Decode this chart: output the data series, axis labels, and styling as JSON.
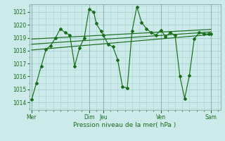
{
  "xlabel": "Pression niveau de la mer( hPa )",
  "bg_color": "#cceaea",
  "grid_color": "#aad4d4",
  "line_color": "#1a6e1a",
  "yticks": [
    1014,
    1015,
    1016,
    1017,
    1018,
    1019,
    1020,
    1021
  ],
  "ylim_low": 1013.4,
  "ylim_high": 1021.6,
  "xlim_low": -4,
  "xlim_high": 316,
  "day_positions": [
    0,
    96,
    120,
    216,
    300
  ],
  "day_names": [
    "Mer",
    "Dim",
    "Jeu",
    "Ven",
    "Sam"
  ],
  "trend_lines": [
    {
      "x": [
        0,
        300
      ],
      "y": [
        1018.05,
        1019.25
      ]
    },
    {
      "x": [
        0,
        300
      ],
      "y": [
        1018.5,
        1019.45
      ]
    },
    {
      "x": [
        0,
        300
      ],
      "y": [
        1018.9,
        1019.65
      ]
    }
  ],
  "main_x": [
    0,
    8,
    16,
    24,
    32,
    40,
    48,
    56,
    64,
    72,
    80,
    88,
    96,
    104,
    108,
    116,
    120,
    128,
    136,
    144,
    152,
    160,
    168,
    176,
    184,
    192,
    200,
    208,
    216,
    224,
    232,
    240,
    248,
    256,
    264,
    272,
    280,
    288,
    296,
    300
  ],
  "main_y": [
    1014.2,
    1015.5,
    1016.8,
    1018.1,
    1018.4,
    1019.0,
    1019.7,
    1019.4,
    1019.2,
    1016.8,
    1018.2,
    1019.0,
    1021.2,
    1021.0,
    1020.1,
    1019.5,
    1019.2,
    1018.5,
    1018.3,
    1017.3,
    1015.2,
    1015.1,
    1019.5,
    1021.4,
    1020.2,
    1019.7,
    1019.4,
    1019.2,
    1019.6,
    1019.1,
    1019.4,
    1019.2,
    1016.0,
    1014.3,
    1016.1,
    1018.9,
    1019.4,
    1019.3,
    1019.3,
    1019.3
  ]
}
